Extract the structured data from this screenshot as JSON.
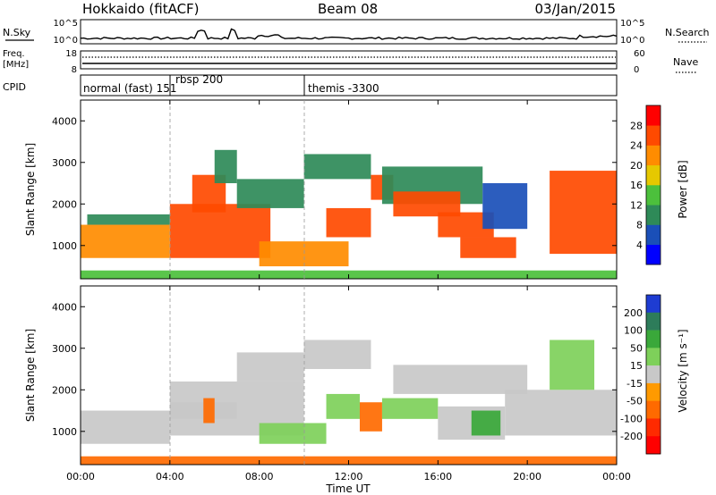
{
  "header": {
    "station": "Hokkaido (fitACF)",
    "beam": "Beam 08",
    "date": "03/Jan/2015"
  },
  "noise_panel": {
    "left_label": "N.Sky",
    "right_label": "N.Search",
    "tick_top": "10^5",
    "tick_bottom": "10^0",
    "tick_top_right": "10^5",
    "tick_bottom_right": "10^0"
  },
  "freq_panel": {
    "left_label_line1": "Freq.",
    "left_label_line2": "[MHz]",
    "right_label": "Nave",
    "left_ticks": [
      "18",
      "8"
    ],
    "right_ticks": [
      "60",
      "0"
    ]
  },
  "cpid_panel": {
    "label": "CPID",
    "segments": [
      {
        "text": "normal (fast) 151",
        "start_h": 0.0
      },
      {
        "text": "rbsp 200",
        "start_h": 4.0
      },
      {
        "text": "themis -3300",
        "start_h": 10.0
      }
    ]
  },
  "time_axis": {
    "label": "Time UT",
    "ticks": [
      "00:00",
      "04:00",
      "08:00",
      "12:00",
      "16:00",
      "20:00",
      "00:00"
    ]
  },
  "chart_data": [
    {
      "type": "heatmap",
      "name": "power",
      "ylabel": "Slant Range [km]",
      "xlabel": "",
      "xlim_hours": [
        0,
        24
      ],
      "ylim": [
        200,
        4500
      ],
      "y_ticks": [
        "1000",
        "2000",
        "3000",
        "4000"
      ],
      "y_tick_values": [
        1000,
        2000,
        3000,
        4000
      ],
      "colorbar_label": "Power [dB]",
      "colorbar_ticks": [
        "4",
        "8",
        "12",
        "16",
        "20",
        "24",
        "28"
      ],
      "colorbar_colors": [
        "#0000ff",
        "#1a4fb8",
        "#2e8a58",
        "#4cc03c",
        "#e6c800",
        "#ff8c00",
        "#ff4a00",
        "#ff0000"
      ],
      "regions": [
        {
          "t0": 0.0,
          "t1": 4.0,
          "r0": 700,
          "r1": 1500,
          "v": 22
        },
        {
          "t0": 0.3,
          "t1": 4.0,
          "r0": 1500,
          "r1": 1750,
          "v": 10
        },
        {
          "t0": 4.0,
          "t1": 8.5,
          "r0": 700,
          "r1": 2000,
          "v": 24
        },
        {
          "t0": 5.0,
          "t1": 6.5,
          "r0": 1800,
          "r1": 2700,
          "v": 25
        },
        {
          "t0": 6.0,
          "t1": 7.0,
          "r0": 2500,
          "r1": 3300,
          "v": 10
        },
        {
          "t0": 7.0,
          "t1": 10.0,
          "r0": 1900,
          "r1": 2600,
          "v": 9
        },
        {
          "t0": 8.0,
          "t1": 12.0,
          "r0": 500,
          "r1": 1100,
          "v": 23
        },
        {
          "t0": 11.0,
          "t1": 13.0,
          "r0": 1200,
          "r1": 1900,
          "v": 26
        },
        {
          "t0": 10.0,
          "t1": 13.0,
          "r0": 2600,
          "r1": 3200,
          "v": 11
        },
        {
          "t0": 13.0,
          "t1": 14.0,
          "r0": 2100,
          "r1": 2700,
          "v": 26
        },
        {
          "t0": 13.5,
          "t1": 18.0,
          "r0": 2000,
          "r1": 2900,
          "v": 10
        },
        {
          "t0": 14.0,
          "t1": 17.0,
          "r0": 1700,
          "r1": 2300,
          "v": 24
        },
        {
          "t0": 16.0,
          "t1": 18.5,
          "r0": 1200,
          "r1": 1800,
          "v": 25
        },
        {
          "t0": 17.0,
          "t1": 19.5,
          "r0": 700,
          "r1": 1200,
          "v": 25
        },
        {
          "t0": 18.0,
          "t1": 20.0,
          "r0": 1400,
          "r1": 2500,
          "v": 7
        },
        {
          "t0": 21.0,
          "t1": 24.0,
          "r0": 800,
          "r1": 2800,
          "v": 24
        },
        {
          "t0": 0.0,
          "t1": 24.0,
          "r0": 200,
          "r1": 400,
          "v": 14
        }
      ]
    },
    {
      "type": "heatmap",
      "name": "velocity",
      "ylabel": "Slant Range [km]",
      "xlabel": "Time UT",
      "xlim_hours": [
        0,
        24
      ],
      "ylim": [
        200,
        4500
      ],
      "y_ticks": [
        "1000",
        "2000",
        "3000",
        "4000"
      ],
      "y_tick_values": [
        1000,
        2000,
        3000,
        4000
      ],
      "colorbar_label": "Velocity [m s⁻¹]",
      "colorbar_ticks": [
        "200",
        "100",
        "50",
        "15",
        "-15",
        "-50",
        "-100",
        "-200"
      ],
      "colorbar_colors": [
        "#1e3cd2",
        "#2d7c5a",
        "#3aa83a",
        "#7ed05a",
        "#c8c8c8",
        "#ff9a00",
        "#ff6a00",
        "#ff2a00",
        "#ff0000"
      ],
      "regions": [
        {
          "t0": 0.0,
          "t1": 4.0,
          "r0": 700,
          "r1": 1500,
          "v": 0
        },
        {
          "t0": 4.0,
          "t1": 10.0,
          "r0": 900,
          "r1": 2200,
          "v": 0
        },
        {
          "t0": 4.0,
          "t1": 7.0,
          "r0": 1300,
          "r1": 1700,
          "v": 0
        },
        {
          "t0": 5.5,
          "t1": 6.0,
          "r0": 1200,
          "r1": 1800,
          "v": -40
        },
        {
          "t0": 7.0,
          "t1": 10.0,
          "r0": 2200,
          "r1": 2900,
          "v": 0
        },
        {
          "t0": 8.0,
          "t1": 11.0,
          "r0": 700,
          "r1": 1200,
          "v": 30
        },
        {
          "t0": 10.0,
          "t1": 13.0,
          "r0": 2500,
          "r1": 3200,
          "v": 0
        },
        {
          "t0": 11.0,
          "t1": 12.5,
          "r0": 1300,
          "r1": 1900,
          "v": 30
        },
        {
          "t0": 12.5,
          "t1": 13.5,
          "r0": 1000,
          "r1": 1700,
          "v": -40
        },
        {
          "t0": 13.5,
          "t1": 16.0,
          "r0": 1300,
          "r1": 1800,
          "v": 30
        },
        {
          "t0": 14.0,
          "t1": 20.0,
          "r0": 1900,
          "r1": 2600,
          "v": 0
        },
        {
          "t0": 16.0,
          "t1": 19.0,
          "r0": 800,
          "r1": 1600,
          "v": 0
        },
        {
          "t0": 17.5,
          "t1": 18.8,
          "r0": 900,
          "r1": 1500,
          "v": 70
        },
        {
          "t0": 19.0,
          "t1": 24.0,
          "r0": 900,
          "r1": 2000,
          "v": 0
        },
        {
          "t0": 21.0,
          "t1": 23.0,
          "r0": 2000,
          "r1": 3200,
          "v": 30
        },
        {
          "t0": 0.0,
          "t1": 24.0,
          "r0": 200,
          "r1": 400,
          "v": -60
        }
      ]
    }
  ]
}
